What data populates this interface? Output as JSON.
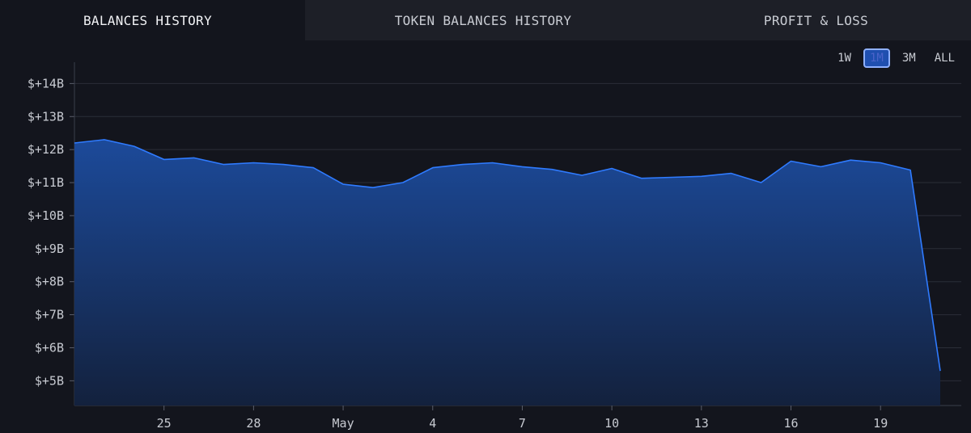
{
  "tabs": [
    {
      "label": "BALANCES HISTORY",
      "active": true
    },
    {
      "label": "TOKEN BALANCES HISTORY",
      "active": false
    },
    {
      "label": "PROFIT & LOSS",
      "active": false
    }
  ],
  "ranges": [
    {
      "label": "1W",
      "active": false
    },
    {
      "label": "1M",
      "active": true
    },
    {
      "label": "3M",
      "active": false
    },
    {
      "label": "ALL",
      "active": false
    }
  ],
  "colors": {
    "line": "#2f7bff",
    "fill_top": "#1c4a9a",
    "fill_bottom": "#13213d",
    "grid": "#2b2e38",
    "background": "#13151d"
  },
  "chart_data": {
    "type": "area",
    "xlabel": "",
    "ylabel": "",
    "x_tick_labels": [
      "25",
      "28",
      "May",
      "4",
      "7",
      "10",
      "13",
      "16",
      "19"
    ],
    "y_tick_labels": [
      "$+5B",
      "$+6B",
      "$+7B",
      "$+8B",
      "$+9B",
      "$+10B",
      "$+11B",
      "$+12B",
      "$+13B",
      "$+14B"
    ],
    "ylim": [
      4.25,
      14.45
    ],
    "grid": true,
    "series": [
      {
        "x": [
          "Apr 22",
          "Apr 23",
          "Apr 24",
          "Apr 25",
          "Apr 26",
          "Apr 27",
          "Apr 28",
          "Apr 29",
          "Apr 30",
          "May 1",
          "May 2",
          "May 3",
          "May 4",
          "May 5",
          "May 6",
          "May 7",
          "May 8",
          "May 9",
          "May 10",
          "May 11",
          "May 12",
          "May 13",
          "May 14",
          "May 15",
          "May 16",
          "May 17",
          "May 18",
          "May 19",
          "May 20",
          "May 21"
        ],
        "values": [
          12.2,
          12.3,
          12.1,
          11.7,
          11.75,
          11.55,
          11.6,
          11.55,
          11.45,
          10.95,
          10.85,
          11.0,
          11.45,
          11.55,
          11.6,
          11.48,
          11.4,
          11.22,
          11.43,
          11.13,
          11.16,
          11.19,
          11.28,
          11.0,
          11.65,
          11.48,
          11.68,
          11.6,
          11.38,
          5.3
        ]
      }
    ]
  }
}
